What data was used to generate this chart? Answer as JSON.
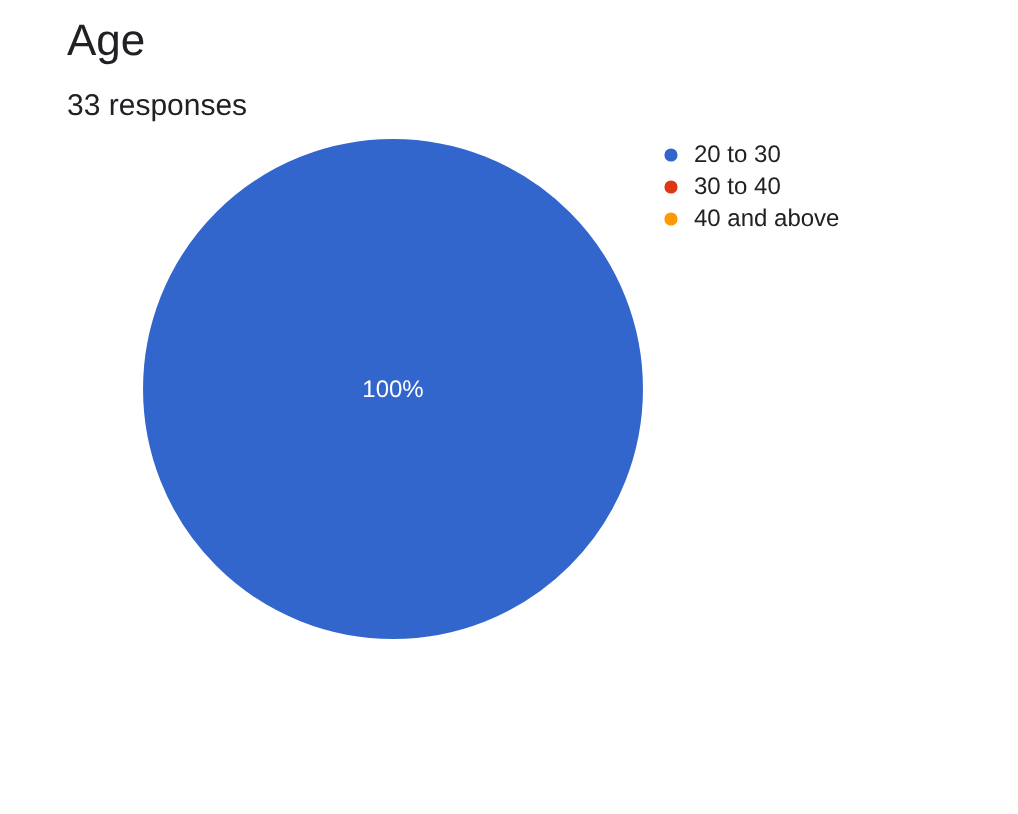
{
  "chart_data": {
    "type": "pie",
    "title": "Age",
    "subtitle": "33 responses",
    "categories": [
      "20 to 30",
      "30 to 40",
      "40 and above"
    ],
    "values": [
      100,
      0,
      0
    ],
    "colors": [
      "#3366cc",
      "#dc3912",
      "#ff9900"
    ],
    "value_labels": [
      "100%",
      null,
      null
    ],
    "legend": "right"
  }
}
